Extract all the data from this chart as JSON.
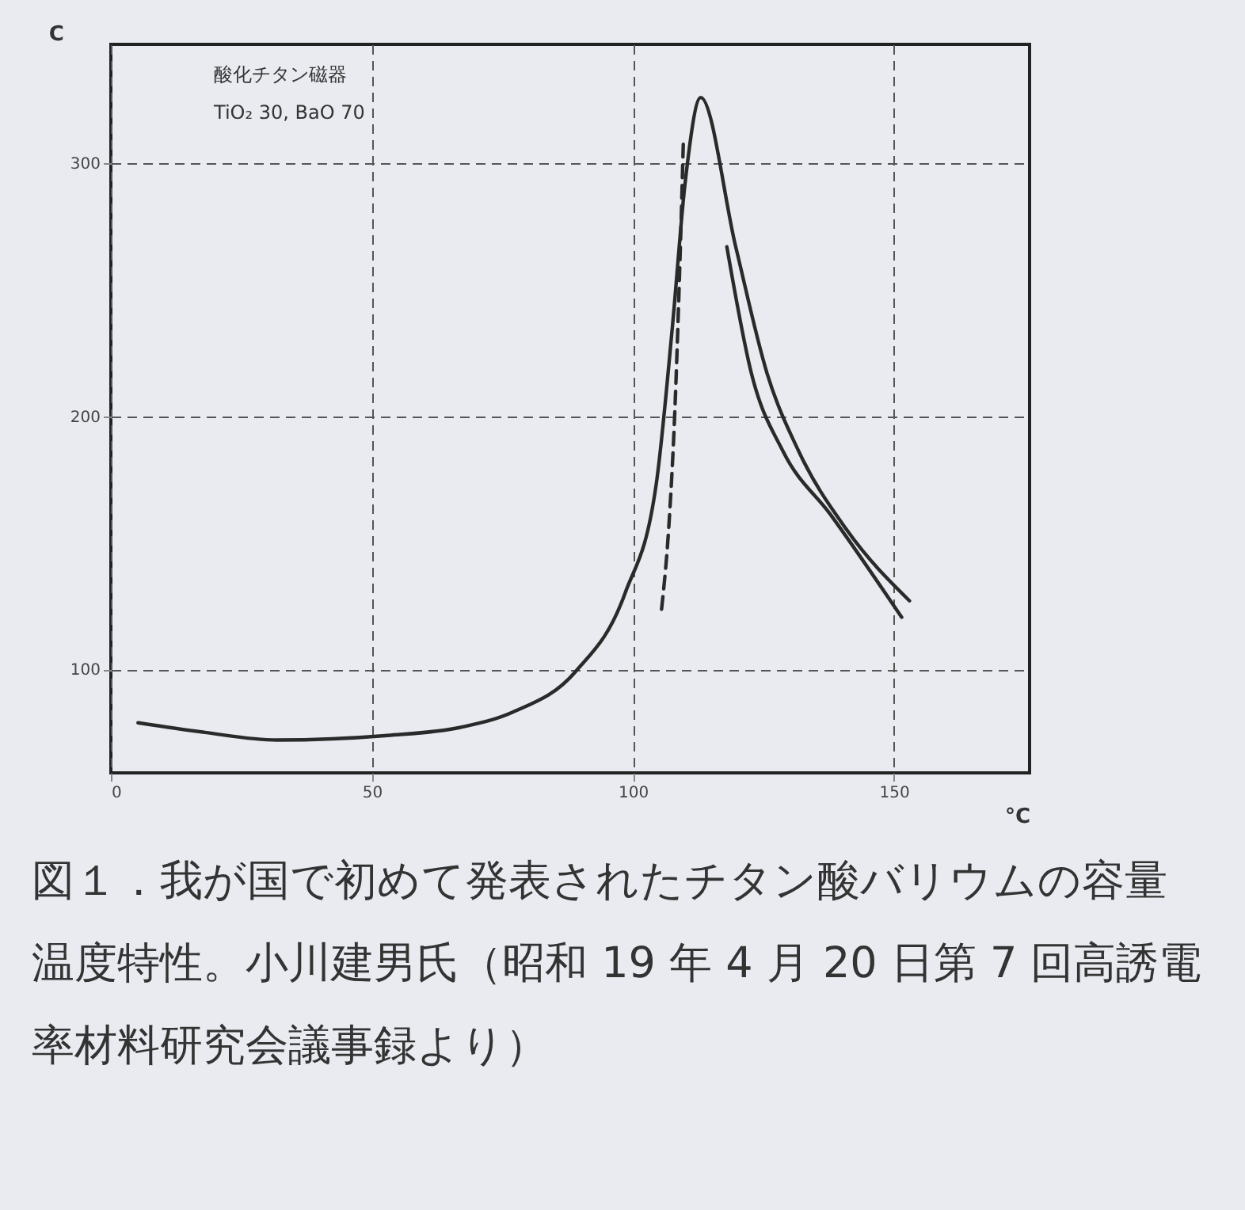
{
  "chart_data": {
    "type": "line",
    "ylabel": "C",
    "xlabel": "°C",
    "xlim": [
      0,
      176
    ],
    "ylim": [
      59,
      347
    ],
    "xticks": [
      0,
      50,
      100,
      150
    ],
    "yticks": [
      100,
      200,
      300
    ],
    "grid": true,
    "line_style": "solid",
    "series": [
      {
        "color": "#2a2a2a",
        "x": [
          5.2,
          18,
          31.8,
          53,
          67,
          77,
          89,
          98.5,
          104.5,
          107.6,
          110,
          113,
          119.7,
          125.7,
          131.8,
          141,
          153
        ],
        "values": [
          78.8,
          75,
          72,
          73.8,
          77,
          83,
          99,
          130,
          173.5,
          236,
          292,
          326,
          267,
          217,
          186,
          155,
          127
        ]
      },
      {
        "color": "#2a2a2a",
        "x": [
          118,
          122.7,
          128.8,
          137.9,
          151.5
        ],
        "values": [
          267,
          217,
          186,
          161,
          120.5
        ]
      },
      {
        "color": "#2a2a2a",
        "line_style": "dashed",
        "x": [
          105.5,
          107,
          108,
          109,
          109.7
        ],
        "values": [
          123.7,
          160,
          200,
          260,
          310.6
        ]
      }
    ],
    "annotations": [
      "酸化チタン磁器",
      "TiO₂ 30, BaO 70",
      "図１．我が国で初めて発表されたチタン酸バリウムの容量温度特性。小川建男氏（昭和 19 年 4 月 20 日第 7 回高誘電率材料研究会議事録より）"
    ]
  }
}
